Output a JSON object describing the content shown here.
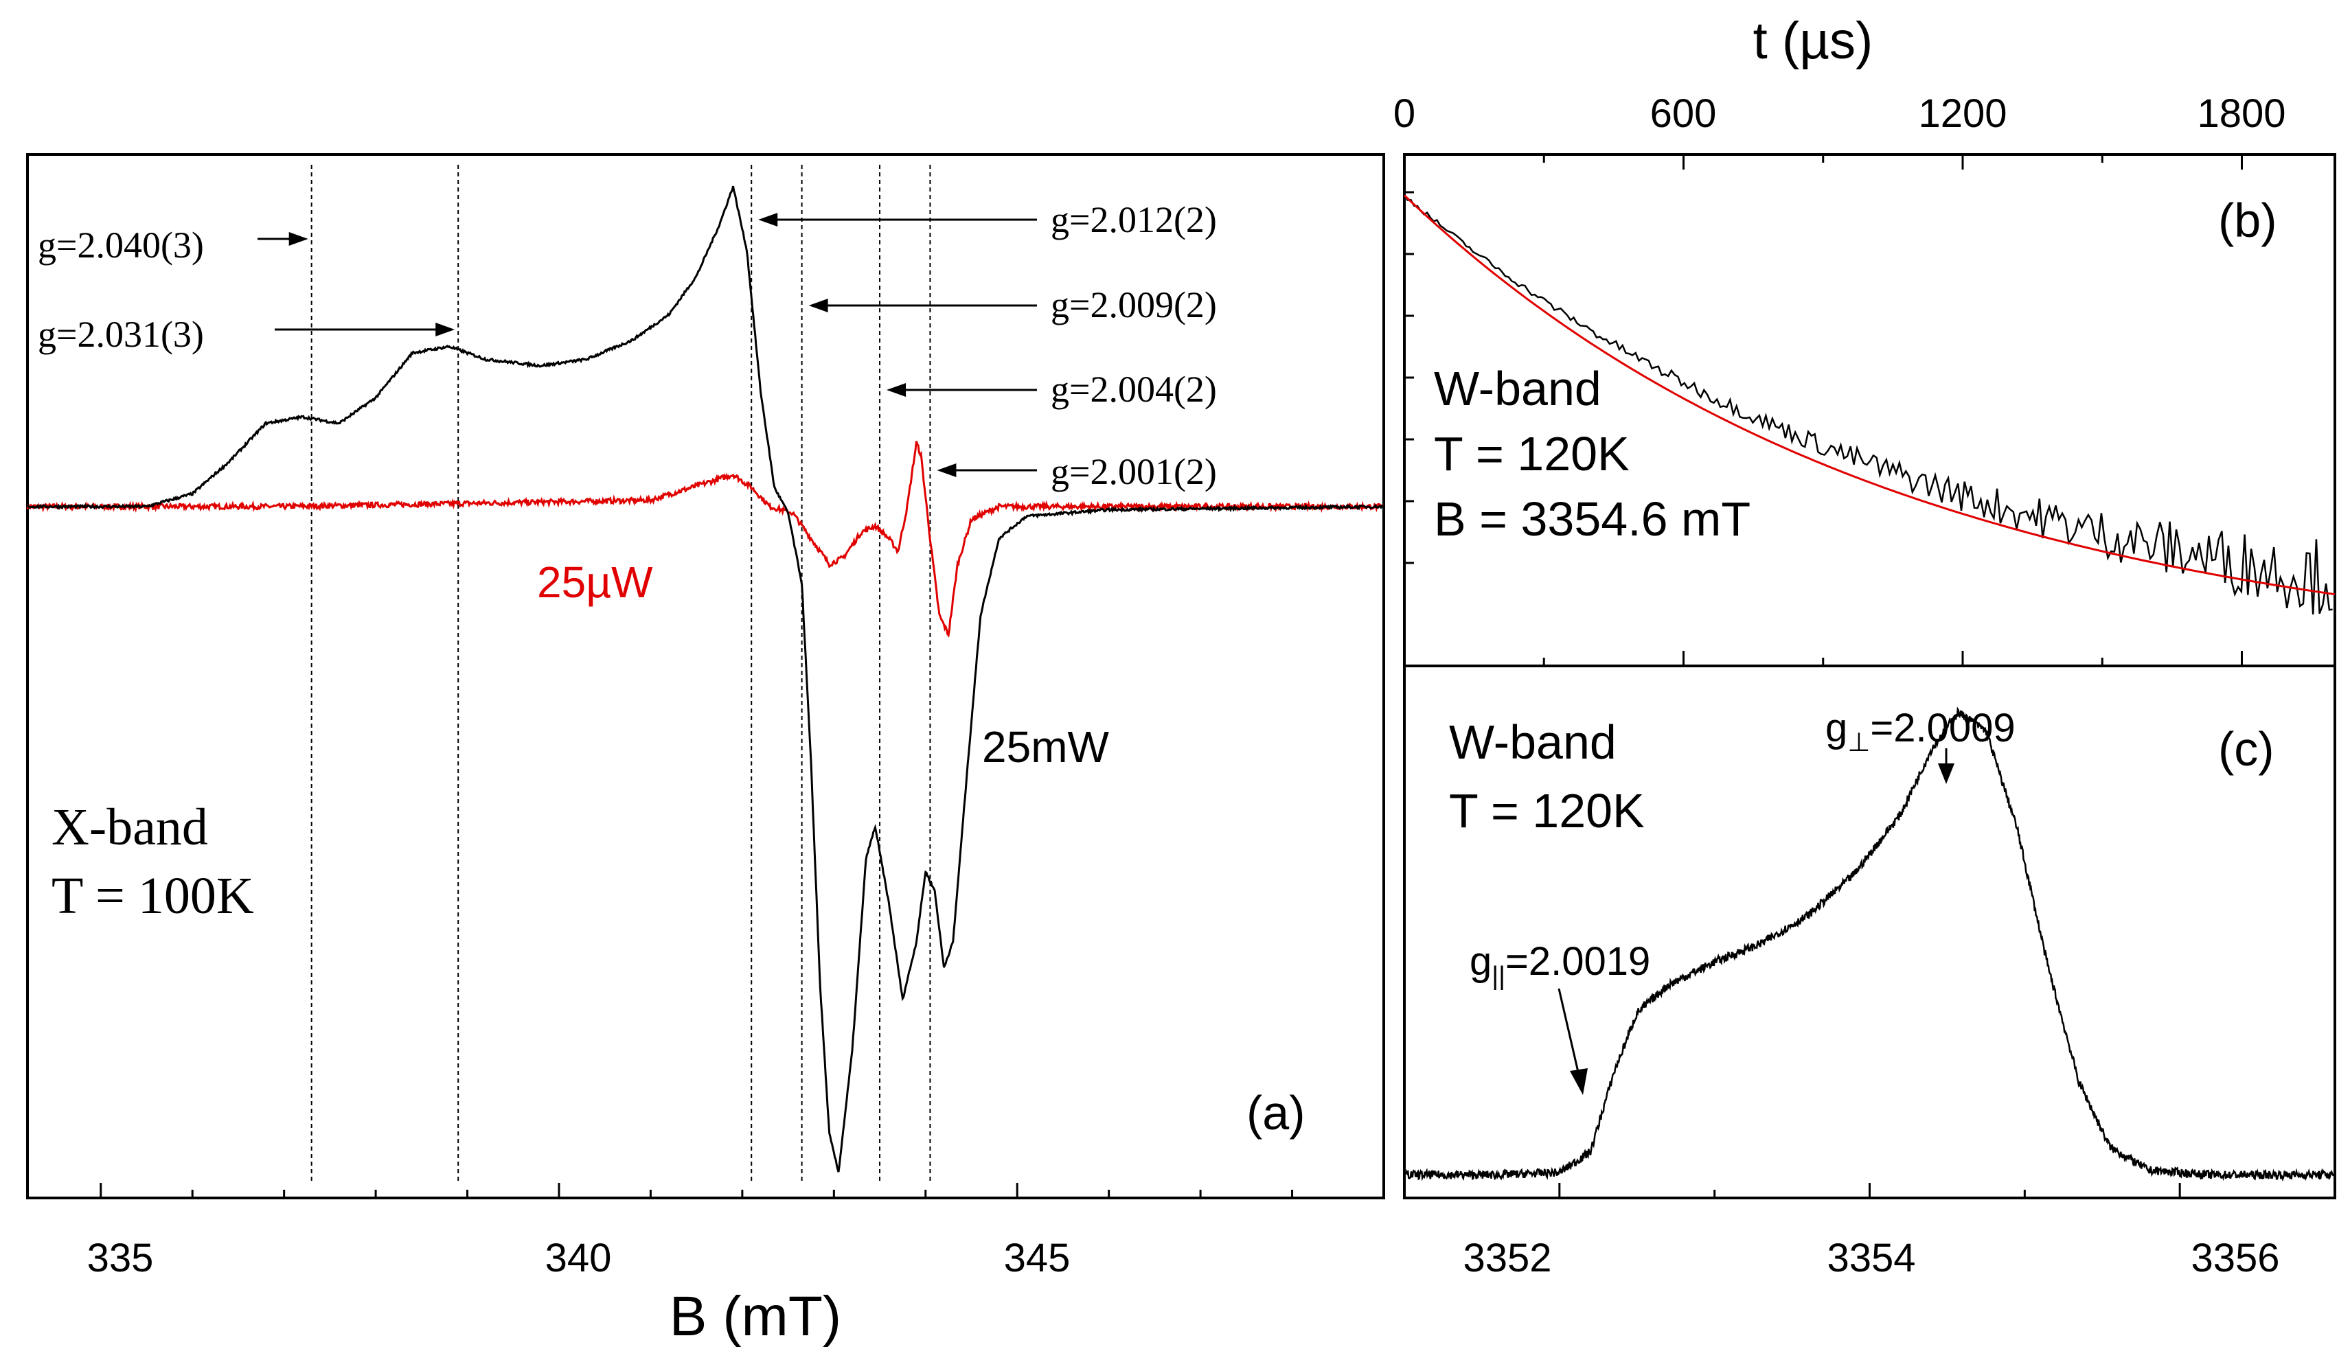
{
  "figure": {
    "xlabel_bottom": "B (mT)",
    "xlabel_top": "t (µs)"
  },
  "chart_data": [
    {
      "id": "a",
      "type": "line",
      "panel_label": "(a)",
      "title": "",
      "xlabel": "B (mT)",
      "ylabel": "",
      "xlim": [
        334.2,
        349.0
      ],
      "ylim": [
        -1.08,
        0.55
      ],
      "xticks": [
        335,
        340,
        345
      ],
      "tick_labels": [
        "335",
        "340",
        "345"
      ],
      "band_text": [
        "X-band",
        "T = 100K"
      ],
      "series": [
        {
          "name": "25mW",
          "color": "#000000",
          "label": "25mW",
          "points": [
            [
              334.2,
              0.0
            ],
            [
              335.5,
              0.0
            ],
            [
              336.0,
              0.02
            ],
            [
              336.4,
              0.07
            ],
            [
              336.8,
              0.13
            ],
            [
              337.2,
              0.14
            ],
            [
              337.6,
              0.13
            ],
            [
              338.0,
              0.17
            ],
            [
              338.4,
              0.24
            ],
            [
              338.8,
              0.25
            ],
            [
              339.2,
              0.23
            ],
            [
              339.8,
              0.22
            ],
            [
              340.3,
              0.23
            ],
            [
              340.8,
              0.26
            ],
            [
              341.2,
              0.3
            ],
            [
              341.5,
              0.36
            ],
            [
              341.75,
              0.44
            ],
            [
              341.9,
              0.5
            ],
            [
              342.05,
              0.4
            ],
            [
              342.2,
              0.18
            ],
            [
              342.35,
              0.03
            ],
            [
              342.5,
              -0.01
            ],
            [
              342.65,
              -0.12
            ],
            [
              342.75,
              -0.4
            ],
            [
              342.85,
              -0.75
            ],
            [
              342.95,
              -0.98
            ],
            [
              343.05,
              -1.04
            ],
            [
              343.2,
              -0.85
            ],
            [
              343.35,
              -0.55
            ],
            [
              343.45,
              -0.5
            ],
            [
              343.6,
              -0.62
            ],
            [
              343.75,
              -0.77
            ],
            [
              343.9,
              -0.68
            ],
            [
              344.0,
              -0.57
            ],
            [
              344.1,
              -0.6
            ],
            [
              344.2,
              -0.72
            ],
            [
              344.3,
              -0.68
            ],
            [
              344.45,
              -0.42
            ],
            [
              344.6,
              -0.17
            ],
            [
              344.8,
              -0.05
            ],
            [
              345.1,
              -0.015
            ],
            [
              346.0,
              -0.005
            ],
            [
              349.0,
              0.0
            ]
          ]
        },
        {
          "name": "25µW",
          "color": "#e00000",
          "label": "25µW",
          "points": [
            [
              334.2,
              0.0
            ],
            [
              337.0,
              0.0
            ],
            [
              339.0,
              0.005
            ],
            [
              341.0,
              0.01
            ],
            [
              341.9,
              0.05
            ],
            [
              342.1,
              0.03
            ],
            [
              342.3,
              0.0
            ],
            [
              342.55,
              -0.01
            ],
            [
              342.75,
              -0.05
            ],
            [
              342.95,
              -0.09
            ],
            [
              343.1,
              -0.08
            ],
            [
              343.3,
              -0.04
            ],
            [
              343.45,
              -0.03
            ],
            [
              343.6,
              -0.05
            ],
            [
              343.7,
              -0.07
            ],
            [
              343.8,
              0.0
            ],
            [
              343.9,
              0.1
            ],
            [
              343.95,
              0.08
            ],
            [
              344.05,
              -0.05
            ],
            [
              344.15,
              -0.17
            ],
            [
              344.25,
              -0.2
            ],
            [
              344.35,
              -0.09
            ],
            [
              344.5,
              -0.02
            ],
            [
              344.8,
              0.0
            ],
            [
              349.0,
              0.0
            ]
          ]
        }
      ],
      "markers": [
        {
          "g": "g=2.040(3)",
          "B": 337.3
        },
        {
          "g": "g=2.031(3)",
          "B": 338.9
        },
        {
          "g": "g=2.012(2)",
          "B": 342.1
        },
        {
          "g": "g=2.009(2)",
          "B": 342.65
        },
        {
          "g": "g=2.004(2)",
          "B": 343.5
        },
        {
          "g": "g=2.001(2)",
          "B": 344.05
        }
      ]
    },
    {
      "id": "b",
      "type": "line",
      "panel_label": "(b)",
      "title": "",
      "xlabel": "t (µs)",
      "ylabel": "",
      "xlim": [
        0,
        2000
      ],
      "ylim": [
        0,
        1
      ],
      "xticks": [
        0,
        600,
        1200,
        1800
      ],
      "tick_labels": [
        "0",
        "600",
        "1200",
        "1800"
      ],
      "band_text": [
        "W-band",
        "T = 120K",
        "B = 3354.6 mT"
      ],
      "series": [
        {
          "name": "data",
          "color": "#000000",
          "start": 0.92,
          "end": 0.17,
          "noise_start": 0.005,
          "noise_end": 0.08
        },
        {
          "name": "fit",
          "color": "#e00000",
          "start": 0.92,
          "end": 0.14
        }
      ]
    },
    {
      "id": "c",
      "type": "line",
      "panel_label": "(c)",
      "title": "",
      "xlabel": "B (mT)",
      "ylabel": "",
      "xlim": [
        3351.0,
        3357.0
      ],
      "ylim": [
        -0.05,
        1.1
      ],
      "xticks": [
        3352,
        3354,
        3356
      ],
      "tick_labels": [
        "3352",
        "3354",
        "3356"
      ],
      "band_text": [
        "W-band",
        "T = 120K"
      ],
      "annotations": [
        {
          "prefix": "g",
          "sub": "||",
          "rest": "=2.0019",
          "B": 3352.2
        },
        {
          "prefix": "g",
          "sub": "⊥",
          "rest": "=2.0009",
          "B": 3354.57
        }
      ],
      "series": [
        {
          "name": "spectrum",
          "color": "#000000",
          "points": [
            [
              3351.0,
              0.0
            ],
            [
              3351.6,
              0.0
            ],
            [
              3352.0,
              0.005
            ],
            [
              3352.2,
              0.05
            ],
            [
              3352.35,
              0.22
            ],
            [
              3352.5,
              0.35
            ],
            [
              3352.7,
              0.41
            ],
            [
              3353.0,
              0.46
            ],
            [
              3353.3,
              0.5
            ],
            [
              3353.6,
              0.56
            ],
            [
              3353.9,
              0.65
            ],
            [
              3354.2,
              0.78
            ],
            [
              3354.4,
              0.92
            ],
            [
              3354.57,
              1.0
            ],
            [
              3354.75,
              0.96
            ],
            [
              3354.95,
              0.75
            ],
            [
              3355.15,
              0.45
            ],
            [
              3355.35,
              0.2
            ],
            [
              3355.55,
              0.06
            ],
            [
              3355.8,
              0.01
            ],
            [
              3356.2,
              0.0
            ],
            [
              3357.0,
              0.0
            ]
          ]
        }
      ]
    }
  ]
}
